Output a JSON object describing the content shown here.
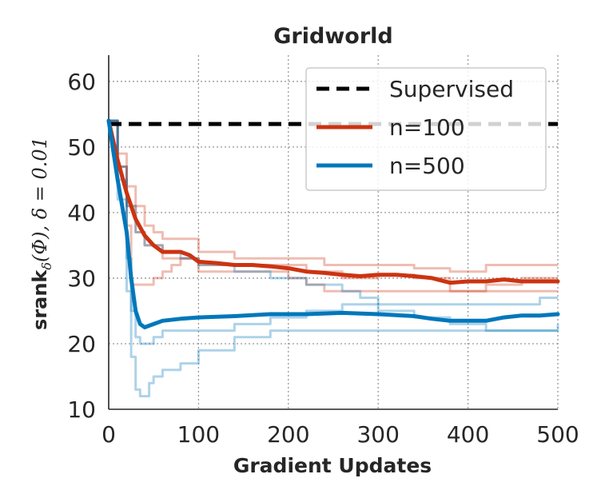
{
  "chart_data": {
    "type": "line",
    "title": "Gridworld",
    "xlabel": "Gradient Updates",
    "ylabel": {
      "main": "srank",
      "sub": "δ",
      "rest": "(Φ), δ = 0.01"
    },
    "xlim": [
      0,
      500
    ],
    "ylim": [
      10,
      64
    ],
    "xticks": [
      0,
      100,
      200,
      300,
      400,
      500
    ],
    "yticks": [
      10,
      20,
      30,
      40,
      50,
      60
    ],
    "grid": true,
    "legend": {
      "placement": "top-right",
      "entries": [
        "Supervised",
        "n=100",
        "n=500"
      ]
    },
    "colors": {
      "supervised": "#000000",
      "n100": "#cc3311",
      "n500": "#0077bb"
    },
    "reference_line": {
      "name": "Supervised",
      "y": 53.5
    },
    "series": [
      {
        "name": "n=100",
        "mean": [
          [
            0,
            54
          ],
          [
            10,
            48
          ],
          [
            20,
            43
          ],
          [
            30,
            39
          ],
          [
            40,
            36.5
          ],
          [
            50,
            35
          ],
          [
            60,
            34
          ],
          [
            70,
            34
          ],
          [
            80,
            34
          ],
          [
            90,
            33.5
          ],
          [
            100,
            32.5
          ],
          [
            120,
            32.3
          ],
          [
            140,
            32
          ],
          [
            160,
            32
          ],
          [
            180,
            31.8
          ],
          [
            200,
            31.5
          ],
          [
            220,
            31
          ],
          [
            240,
            30.8
          ],
          [
            260,
            30.5
          ],
          [
            280,
            30.3
          ],
          [
            300,
            30.5
          ],
          [
            320,
            30.5
          ],
          [
            340,
            30.3
          ],
          [
            360,
            30
          ],
          [
            380,
            29.3
          ],
          [
            400,
            29.5
          ],
          [
            420,
            29.5
          ],
          [
            440,
            29.8
          ],
          [
            460,
            29.5
          ],
          [
            480,
            29.5
          ],
          [
            500,
            29.5
          ]
        ],
        "runs": [
          [
            [
              0,
              54
            ],
            [
              10,
              49
            ],
            [
              20,
              44
            ],
            [
              30,
              41
            ],
            [
              40,
              38
            ],
            [
              50,
              37
            ],
            [
              60,
              36
            ],
            [
              80,
              36
            ],
            [
              100,
              34
            ],
            [
              140,
              33
            ],
            [
              180,
              33
            ],
            [
              200,
              33
            ],
            [
              240,
              32
            ],
            [
              280,
              32
            ],
            [
              300,
              32
            ],
            [
              340,
              31.5
            ],
            [
              380,
              31
            ],
            [
              420,
              32
            ],
            [
              460,
              32
            ],
            [
              500,
              32
            ]
          ],
          [
            [
              0,
              54
            ],
            [
              10,
              47
            ],
            [
              20,
              38
            ],
            [
              25,
              29
            ],
            [
              40,
              29
            ],
            [
              50,
              30
            ],
            [
              60,
              31
            ],
            [
              70,
              32
            ],
            [
              80,
              33
            ],
            [
              100,
              32
            ],
            [
              140,
              32
            ],
            [
              200,
              32
            ],
            [
              220,
              31
            ],
            [
              260,
              30
            ],
            [
              300,
              30.5
            ],
            [
              340,
              30
            ],
            [
              380,
              28
            ],
            [
              420,
              29
            ],
            [
              460,
              30
            ],
            [
              500,
              30
            ]
          ],
          [
            [
              0,
              54
            ],
            [
              10,
              47
            ],
            [
              20,
              41
            ],
            [
              30,
              37
            ],
            [
              40,
              35
            ],
            [
              60,
              33
            ],
            [
              80,
              33
            ],
            [
              100,
              31
            ],
            [
              140,
              31
            ],
            [
              180,
              31
            ],
            [
              200,
              30
            ],
            [
              220,
              29
            ],
            [
              240,
              28
            ],
            [
              280,
              28
            ],
            [
              300,
              28
            ],
            [
              340,
              28
            ],
            [
              380,
              28
            ],
            [
              420,
              28
            ],
            [
              460,
              28
            ],
            [
              500,
              28
            ]
          ]
        ]
      },
      {
        "name": "n=500",
        "mean": [
          [
            0,
            54
          ],
          [
            10,
            45
          ],
          [
            20,
            37
          ],
          [
            25,
            30
          ],
          [
            30,
            25
          ],
          [
            35,
            23
          ],
          [
            40,
            22.5
          ],
          [
            50,
            23
          ],
          [
            60,
            23.5
          ],
          [
            80,
            23.8
          ],
          [
            100,
            24
          ],
          [
            140,
            24.2
          ],
          [
            180,
            24.5
          ],
          [
            220,
            24.5
          ],
          [
            260,
            24.7
          ],
          [
            300,
            24.5
          ],
          [
            340,
            24.2
          ],
          [
            360,
            23.8
          ],
          [
            380,
            23.5
          ],
          [
            400,
            23.5
          ],
          [
            420,
            23.5
          ],
          [
            440,
            24
          ],
          [
            460,
            24.3
          ],
          [
            480,
            24.3
          ],
          [
            500,
            24.5
          ]
        ],
        "runs": [
          [
            [
              0,
              54
            ],
            [
              10,
              42
            ],
            [
              20,
              28
            ],
            [
              25,
              18
            ],
            [
              30,
              13
            ],
            [
              35,
              12
            ],
            [
              40,
              12
            ],
            [
              45,
              14
            ],
            [
              50,
              15
            ],
            [
              60,
              16
            ],
            [
              80,
              17
            ],
            [
              100,
              19
            ],
            [
              140,
              21
            ],
            [
              180,
              22
            ],
            [
              220,
              22
            ],
            [
              260,
              22
            ],
            [
              300,
              22
            ],
            [
              340,
              22
            ],
            [
              380,
              22
            ],
            [
              420,
              22
            ],
            [
              460,
              22
            ],
            [
              500,
              22
            ]
          ],
          [
            [
              0,
              54
            ],
            [
              10,
              45
            ],
            [
              20,
              33
            ],
            [
              25,
              25
            ],
            [
              30,
              21
            ],
            [
              35,
              20
            ],
            [
              50,
              21
            ],
            [
              60,
              22
            ],
            [
              80,
              22
            ],
            [
              100,
              22
            ],
            [
              140,
              23
            ],
            [
              180,
              24
            ],
            [
              220,
              25
            ],
            [
              260,
              26
            ],
            [
              300,
              26
            ],
            [
              340,
              26
            ],
            [
              380,
              26
            ],
            [
              420,
              26
            ],
            [
              460,
              26
            ],
            [
              480,
              27
            ],
            [
              500,
              27
            ]
          ],
          [
            [
              0,
              54
            ],
            [
              10,
              47
            ],
            [
              20,
              41
            ],
            [
              30,
              37
            ],
            [
              40,
              35
            ],
            [
              60,
              34
            ],
            [
              80,
              33
            ],
            [
              100,
              32
            ],
            [
              140,
              31
            ],
            [
              180,
              30
            ],
            [
              220,
              29
            ],
            [
              260,
              28
            ],
            [
              280,
              27
            ],
            [
              300,
              25
            ],
            [
              340,
              24
            ],
            [
              380,
              23
            ],
            [
              420,
              22
            ],
            [
              460,
              22
            ],
            [
              500,
              23
            ]
          ]
        ]
      }
    ]
  }
}
